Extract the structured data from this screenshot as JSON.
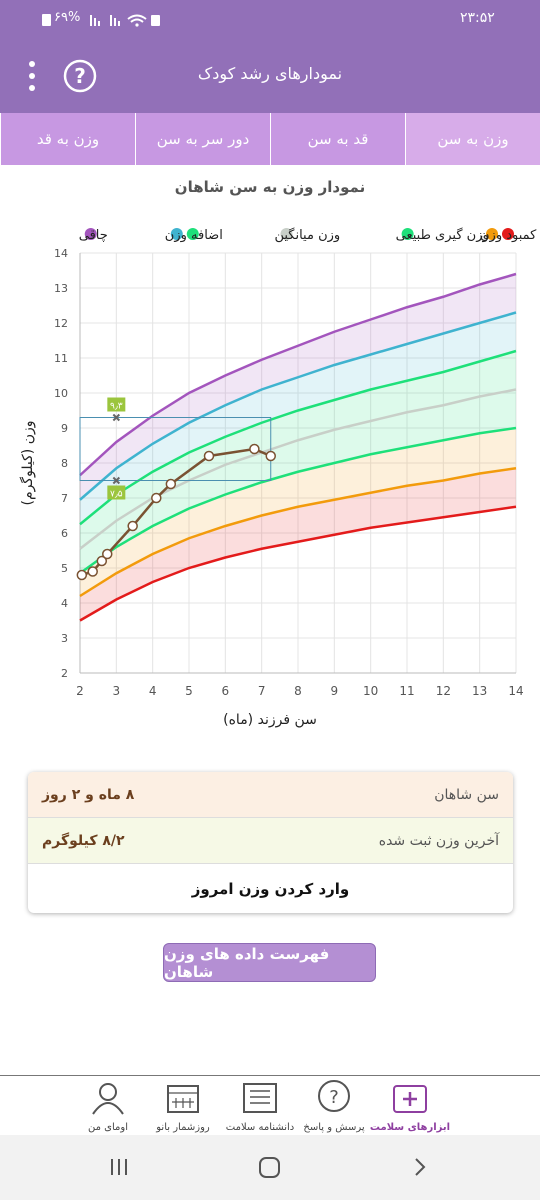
{
  "status_bar": {
    "time": "۲۳:۵۲",
    "battery": "۶۹%"
  },
  "header": {
    "title": "نمودارهای رشد کودک"
  },
  "tabs": [
    "وزن به سن",
    "قد به سن",
    "دور سر به سن",
    "وزن به قد"
  ],
  "chart_data": {
    "type": "line",
    "title": "نمودار وزن به سن شاهان",
    "x_label": "سن فرزند (ماه)",
    "y_label": "وزن (کیلوگرم)",
    "x": [
      2,
      3,
      4,
      5,
      6,
      7,
      8,
      9,
      10,
      11,
      12,
      13,
      14
    ],
    "xlim": [
      2,
      14
    ],
    "ylim": [
      2,
      14
    ],
    "xticks": [
      2,
      3,
      4,
      5,
      6,
      7,
      8,
      9,
      10,
      11,
      12,
      13,
      14
    ],
    "yticks": [
      2,
      3,
      4,
      5,
      6,
      7,
      8,
      9,
      10,
      11,
      12,
      13,
      14
    ],
    "grid": true,
    "series": [
      {
        "color": "#e31b1b",
        "values": [
          3.5,
          4.1,
          4.6,
          5.0,
          5.3,
          5.55,
          5.75,
          5.95,
          6.15,
          6.3,
          6.45,
          6.6,
          6.75
        ]
      },
      {
        "name": "کمبود وزن",
        "color": "#f29b0c",
        "values": [
          4.2,
          4.85,
          5.4,
          5.85,
          6.2,
          6.5,
          6.75,
          6.95,
          7.15,
          7.35,
          7.5,
          7.7,
          7.85
        ]
      },
      {
        "name": "وزن گیری طبیعی",
        "color": "#1ee07a",
        "values": [
          4.85,
          5.6,
          6.2,
          6.7,
          7.1,
          7.45,
          7.75,
          8.0,
          8.25,
          8.45,
          8.65,
          8.85,
          9.0
        ]
      },
      {
        "name": "وزن میانگین",
        "color": "#c8cfc8",
        "values": [
          5.55,
          6.35,
          7.0,
          7.5,
          7.95,
          8.3,
          8.65,
          8.95,
          9.2,
          9.45,
          9.65,
          9.9,
          10.1
        ]
      },
      {
        "color": "#1ee07a",
        "values": [
          6.25,
          7.1,
          7.75,
          8.3,
          8.75,
          9.15,
          9.5,
          9.8,
          10.1,
          10.35,
          10.6,
          10.9,
          11.2
        ]
      },
      {
        "name": "اضافه وزن",
        "color": "#3fb3cf",
        "values": [
          6.95,
          7.85,
          8.55,
          9.15,
          9.65,
          10.1,
          10.45,
          10.8,
          11.1,
          11.4,
          11.7,
          12.0,
          12.3
        ]
      },
      {
        "name": "چاقی",
        "color": "#a355bd",
        "values": [
          7.65,
          8.6,
          9.35,
          10.0,
          10.5,
          10.95,
          11.35,
          11.75,
          12.1,
          12.45,
          12.75,
          13.1,
          13.4
        ]
      }
    ],
    "child": {
      "color": "#7a5232",
      "x": [
        2.05,
        2.35,
        2.6,
        2.75,
        3.45,
        4.1,
        4.5,
        5.55,
        6.8,
        7.25
      ],
      "values": [
        4.8,
        4.9,
        5.2,
        5.4,
        6.2,
        7.0,
        7.4,
        8.2,
        8.4,
        8.2
      ]
    },
    "annotations": [
      {
        "x": 3,
        "y": 9.3,
        "label": "۹٫۳"
      },
      {
        "x": 3,
        "y": 7.5,
        "label": "۷٫۵"
      }
    ]
  },
  "info": {
    "age_label": "سن شاهان",
    "age_value": "۸ ماه و ۲ روز",
    "weight_label": "آخرین وزن ثبت شده",
    "weight_value": "۸/۲ کیلوگرم",
    "enter_weight": "وارد کردن وزن امروز"
  },
  "list_button": "فهرست داده های وزن شاهان",
  "bottom_nav": [
    "ابزارهای سلامت",
    "پرسش و پاسخ",
    "دانشنامه سلامت",
    "روزشمار بانو",
    "اومای من"
  ]
}
